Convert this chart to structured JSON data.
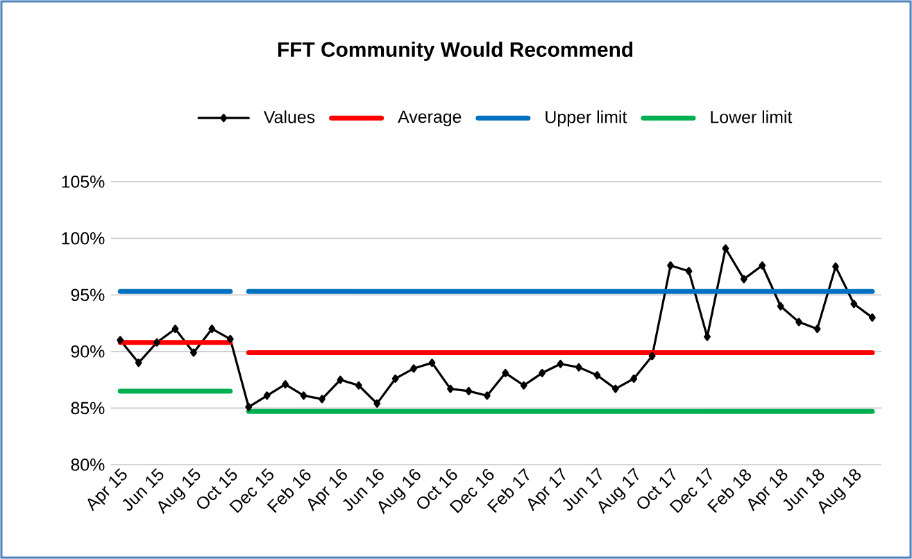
{
  "chart_data": {
    "type": "line",
    "title": "FFT Community Would Recommend",
    "categories": [
      "Apr 15",
      null,
      "Jun 15",
      null,
      "Aug 15",
      null,
      "Oct 15",
      null,
      "Dec 15",
      null,
      "Feb 16",
      null,
      "Apr 16",
      null,
      "Jun 16",
      null,
      "Aug 16",
      null,
      "Oct 16",
      null,
      "Dec 16",
      null,
      "Feb 17",
      null,
      "Apr 17",
      null,
      "Jun 17",
      null,
      "Aug 17",
      null,
      "Oct 17",
      null,
      "Dec 17",
      null,
      "Feb 18",
      null,
      "Apr 18",
      null,
      "Jun 18",
      null,
      "Aug 18",
      null
    ],
    "series": [
      {
        "name": "Values",
        "color": "#000000",
        "marker": "diamond",
        "values": [
          91.0,
          89.0,
          90.8,
          92.0,
          89.9,
          92.0,
          91.1,
          85.1,
          86.1,
          87.1,
          86.1,
          85.8,
          87.5,
          87.0,
          85.4,
          87.6,
          88.5,
          89.0,
          86.7,
          86.5,
          86.1,
          88.1,
          87.0,
          88.1,
          88.9,
          88.6,
          87.9,
          86.7,
          87.6,
          89.6,
          97.6,
          97.1,
          91.3,
          99.1,
          96.4,
          97.6,
          94.0,
          92.6,
          92.0,
          97.5,
          94.2,
          93.0
        ]
      },
      {
        "name": "Average",
        "color": "#ff0000",
        "values": [
          90.8,
          90.8,
          90.8,
          90.8,
          90.8,
          90.8,
          90.8,
          null,
          null,
          null,
          null,
          null,
          null,
          null,
          null,
          null,
          null,
          null,
          null,
          null,
          null,
          null,
          null,
          null,
          null,
          null,
          null,
          null,
          null,
          null,
          null,
          null,
          null,
          null,
          null,
          null,
          null,
          null,
          null,
          null,
          null,
          null
        ]
      },
      {
        "color": "#ff0000",
        "values": [
          null,
          null,
          null,
          null,
          null,
          null,
          null,
          89.9,
          89.9,
          89.9,
          89.9,
          89.9,
          89.9,
          89.9,
          89.9,
          89.9,
          89.9,
          89.9,
          89.9,
          89.9,
          89.9,
          89.9,
          89.9,
          89.9,
          89.9,
          89.9,
          89.9,
          89.9,
          89.9,
          89.9,
          89.9,
          89.9,
          89.9,
          89.9,
          89.9,
          89.9,
          89.9,
          89.9,
          89.9,
          89.9,
          89.9,
          89.9
        ]
      },
      {
        "name": "Upper limit",
        "color": "#0070c0",
        "values": [
          95.3,
          95.3,
          95.3,
          95.3,
          95.3,
          95.3,
          95.3,
          null,
          null,
          null,
          null,
          null,
          null,
          null,
          null,
          null,
          null,
          null,
          null,
          null,
          null,
          null,
          null,
          null,
          null,
          null,
          null,
          null,
          null,
          null,
          null,
          null,
          null,
          null,
          null,
          null,
          null,
          null,
          null,
          null,
          null,
          null
        ]
      },
      {
        "color": "#0070c0",
        "values": [
          null,
          null,
          null,
          null,
          null,
          null,
          null,
          95.3,
          95.3,
          95.3,
          95.3,
          95.3,
          95.3,
          95.3,
          95.3,
          95.3,
          95.3,
          95.3,
          95.3,
          95.3,
          95.3,
          95.3,
          95.3,
          95.3,
          95.3,
          95.3,
          95.3,
          95.3,
          95.3,
          95.3,
          95.3,
          95.3,
          95.3,
          95.3,
          95.3,
          95.3,
          95.3,
          95.3,
          95.3,
          95.3,
          95.3,
          95.3
        ]
      },
      {
        "name": "Lower limit",
        "color": "#00b050",
        "values": [
          86.5,
          86.5,
          86.5,
          86.5,
          86.5,
          86.5,
          86.5,
          null,
          null,
          null,
          null,
          null,
          null,
          null,
          null,
          null,
          null,
          null,
          null,
          null,
          null,
          null,
          null,
          null,
          null,
          null,
          null,
          null,
          null,
          null,
          null,
          null,
          null,
          null,
          null,
          null,
          null,
          null,
          null,
          null,
          null,
          null
        ]
      },
      {
        "color": "#00b050",
        "values": [
          null,
          null,
          null,
          null,
          null,
          null,
          null,
          84.7,
          84.7,
          84.7,
          84.7,
          84.7,
          84.7,
          84.7,
          84.7,
          84.7,
          84.7,
          84.7,
          84.7,
          84.7,
          84.7,
          84.7,
          84.7,
          84.7,
          84.7,
          84.7,
          84.7,
          84.7,
          84.7,
          84.7,
          84.7,
          84.7,
          84.7,
          84.7,
          84.7,
          84.7,
          84.7,
          84.7,
          84.7,
          84.7,
          84.7,
          84.7
        ]
      }
    ],
    "ylim": [
      80,
      105
    ],
    "yticks": [
      {
        "value": 80,
        "label": "80%"
      },
      {
        "value": 85,
        "label": "85%"
      },
      {
        "value": 90,
        "label": "90%"
      },
      {
        "value": 95,
        "label": "95%"
      },
      {
        "value": 100,
        "label": "100%"
      },
      {
        "value": 105,
        "label": "105%"
      }
    ],
    "grid": "y",
    "legend": "top",
    "marker": "none",
    "line_style": "solid"
  }
}
